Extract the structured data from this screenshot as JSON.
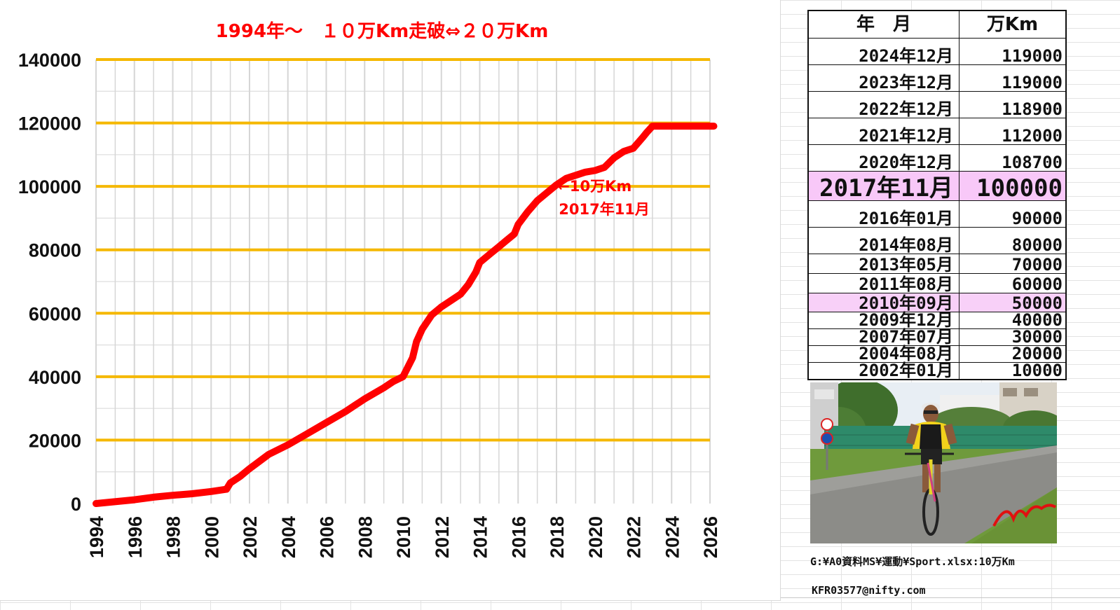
{
  "chart_data": {
    "type": "line",
    "title": "1994年～　１０万Km走破⇔２０万Km",
    "xlabel": "",
    "ylabel": "",
    "xlim": [
      1994,
      2026
    ],
    "ylim": [
      0,
      140000
    ],
    "x_ticks": [
      "1994",
      "1996",
      "1998",
      "2000",
      "2002",
      "2004",
      "2006",
      "2008",
      "2010",
      "2012",
      "2014",
      "2016",
      "2018",
      "2020",
      "2022",
      "2024",
      "2026"
    ],
    "y_ticks": [
      "0",
      "20000",
      "40000",
      "60000",
      "80000",
      "100000",
      "120000",
      "140000"
    ],
    "grid": true,
    "legend": "none",
    "series": [
      {
        "x": [
          1994.0,
          1996.0,
          1997.0,
          1998.0,
          1999.0,
          2000.0,
          2000.8,
          2001.0,
          2001.5,
          2002.0,
          2003.0,
          2004.0,
          2005.0,
          2006.0,
          2007.0,
          2007.5,
          2008.0,
          2009.0,
          2009.5,
          2010.0,
          2010.5,
          2010.7,
          2011.0,
          2011.5,
          2012.0,
          2012.5,
          2013.0,
          2013.4,
          2013.8,
          2014.0,
          2014.6,
          2015.0,
          2015.4,
          2015.8,
          2016.0,
          2016.5,
          2017.0,
          2017.5,
          2018.0,
          2018.5,
          2019.0,
          2019.5,
          2020.0,
          2020.5,
          2021.0,
          2021.5,
          2022.0,
          2022.5,
          2022.7,
          2023.0,
          2024.0,
          2025.0,
          2026.2
        ],
        "y": [
          0,
          1200,
          2000,
          2600,
          3100,
          3800,
          4500,
          6500,
          8500,
          11000,
          15500,
          18500,
          22000,
          25500,
          29000,
          31000,
          33000,
          36500,
          38500,
          40000,
          46000,
          51000,
          55000,
          59500,
          62000,
          64000,
          66000,
          69000,
          73000,
          76000,
          79000,
          81000,
          83000,
          85000,
          88000,
          92000,
          95500,
          98000,
          100500,
          102500,
          103500,
          104500,
          105000,
          106000,
          109000,
          111000,
          112000,
          115500,
          117000,
          119000,
          119000,
          119000,
          119000
        ],
        "color": "#ff0000"
      }
    ],
    "annotations": [
      "←10万Km",
      "2017年11月"
    ],
    "annotation_target": {
      "x": 2017.9,
      "y": 100000
    }
  },
  "colors": {
    "line": "#ff0000",
    "gridline_major": "#f5b800",
    "gridline_minor": "#d6d6d6",
    "title": "#ff0000",
    "highlight": "#f8c8f8"
  },
  "table": {
    "header": [
      "年　月",
      "万Km"
    ],
    "rows": [
      {
        "date": "2024年12月",
        "km": "119000",
        "style": "normal"
      },
      {
        "date": "2023年12月",
        "km": "119000",
        "style": "normal"
      },
      {
        "date": "2022年12月",
        "km": "118900",
        "style": "normal"
      },
      {
        "date": "2021年12月",
        "km": "112000",
        "style": "normal"
      },
      {
        "date": "2020年12月",
        "km": "108700",
        "style": "normal"
      },
      {
        "date": "2017年11月",
        "km": "100000",
        "style": "big"
      },
      {
        "date": "2016年01月",
        "km": "90000",
        "style": "normal"
      },
      {
        "date": "2014年08月",
        "km": "80000",
        "style": "normal"
      },
      {
        "date": "2013年05月",
        "km": "70000",
        "style": "compact"
      },
      {
        "date": "2011年08月",
        "km": "60000",
        "style": "compact"
      },
      {
        "date": "2010年09月",
        "km": "50000",
        "style": "compact-hl"
      },
      {
        "date": "2009年12月",
        "km": "40000",
        "style": "tiny"
      },
      {
        "date": "2007年07月",
        "km": "30000",
        "style": "tiny"
      },
      {
        "date": "2004年08月",
        "km": "20000",
        "style": "tiny"
      },
      {
        "date": "2002年01月",
        "km": "10000",
        "style": "tiny"
      }
    ]
  },
  "photo": {
    "icon": "cyclist-photo"
  },
  "captions": {
    "path": "G:¥A0資料MS¥運動¥Sport.xlsx:10万Km",
    "email": "KFR03577@nifty.com"
  }
}
